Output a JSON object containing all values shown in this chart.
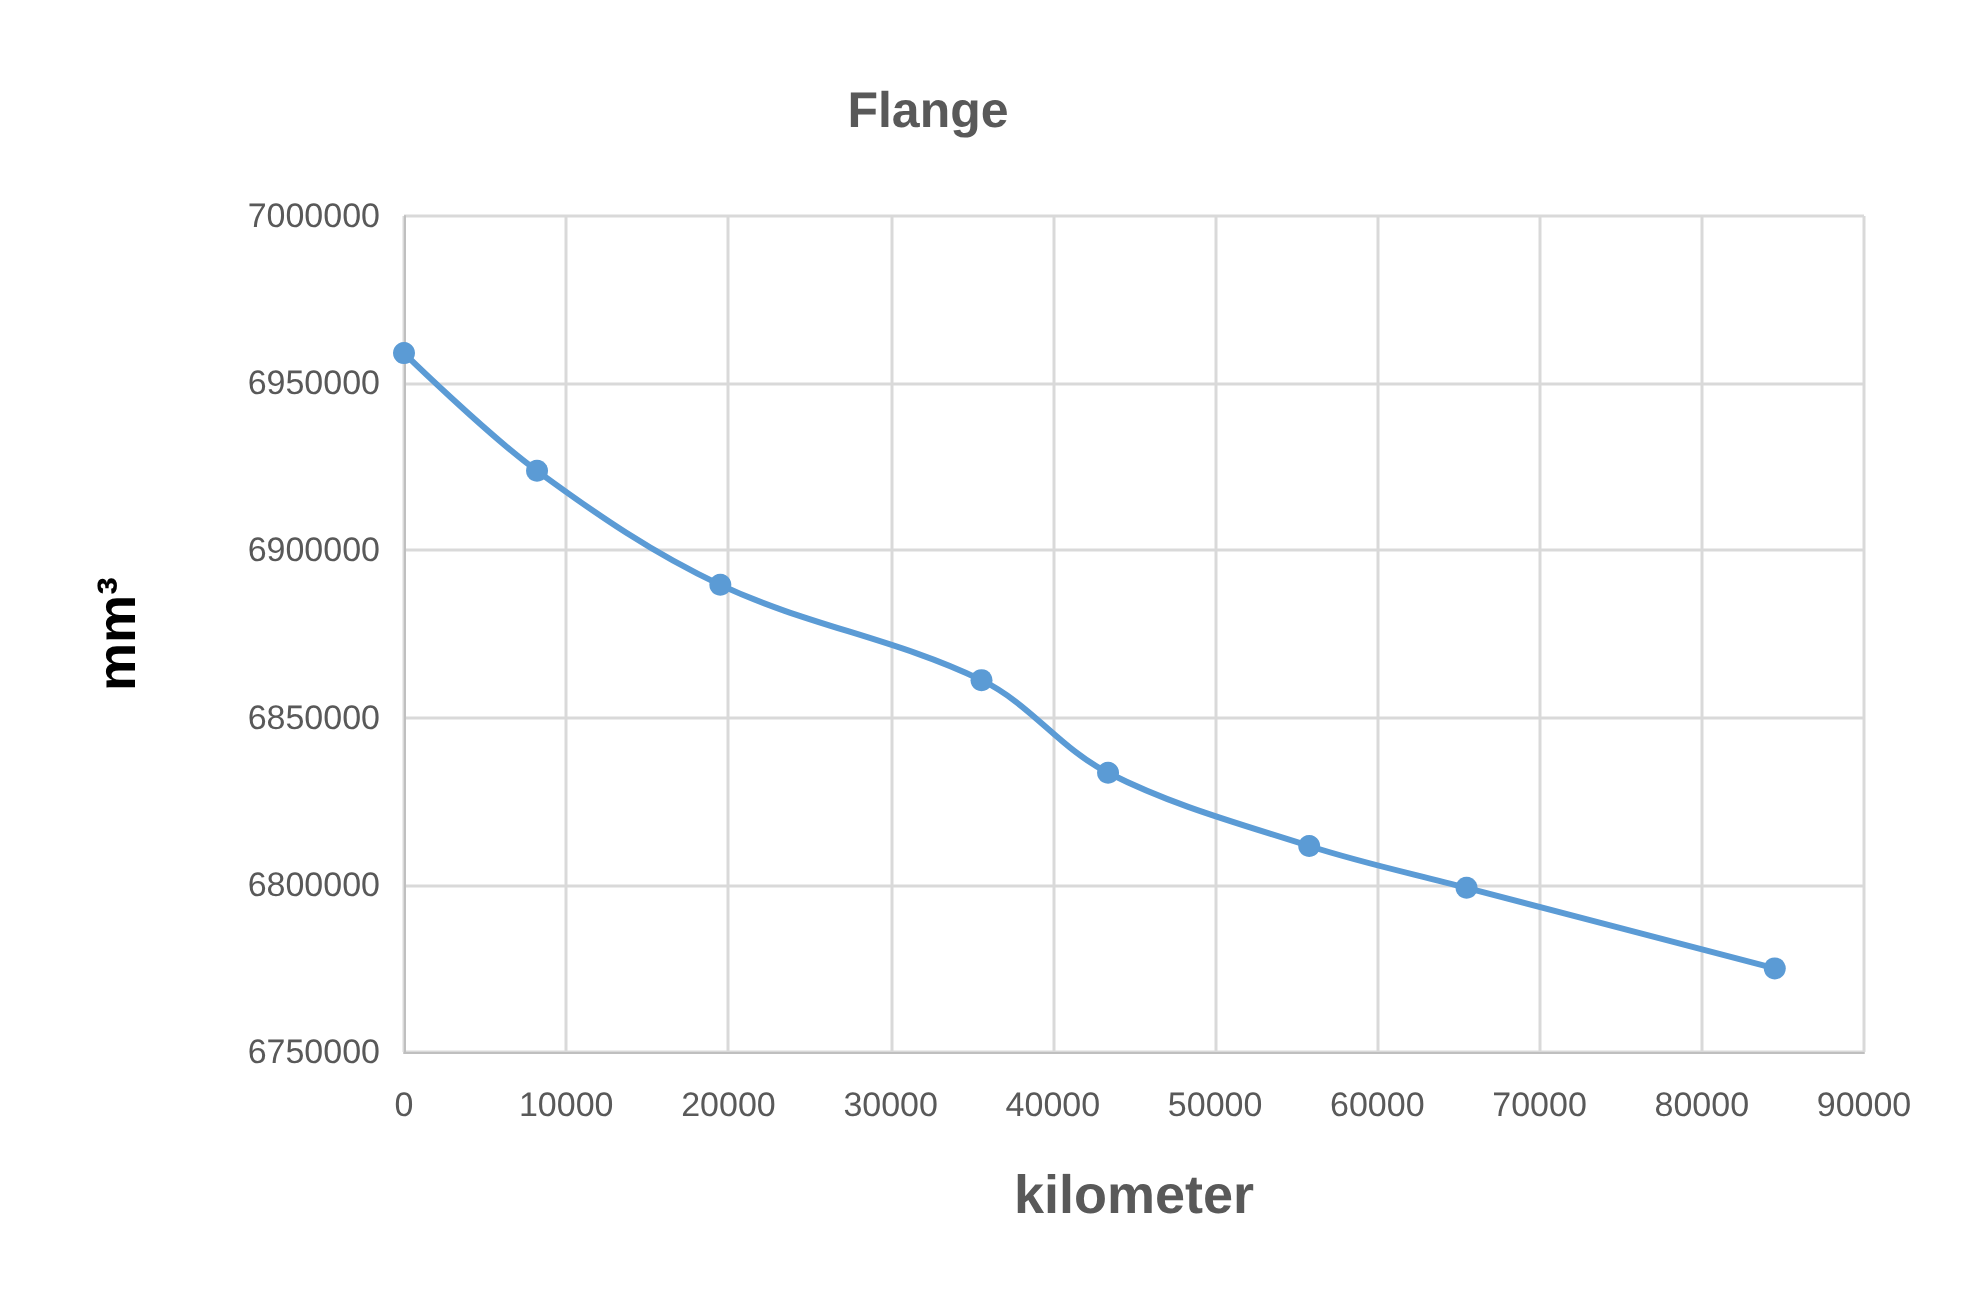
{
  "chart_data": {
    "type": "line",
    "title": "Flange",
    "xlabel": "kilometer",
    "ylabel": "mm³",
    "x": [
      0,
      8200,
      19500,
      35600,
      43400,
      55800,
      65500,
      84500
    ],
    "series": [
      {
        "color": "#5b9bd5",
        "values": [
          6959000,
          6923800,
          6889700,
          6861200,
          6833500,
          6811600,
          6799100,
          6775000
        ]
      }
    ],
    "xlim": [
      0,
      90000
    ],
    "xticks": [
      0,
      10000,
      20000,
      30000,
      40000,
      50000,
      60000,
      70000,
      80000,
      90000
    ],
    "ylim": [
      6750000,
      7000000
    ],
    "yticks": [
      6750000,
      6800000,
      6850000,
      6900000,
      6950000,
      7000000
    ],
    "grid": true,
    "marker": "circle",
    "line_style": "solid"
  }
}
